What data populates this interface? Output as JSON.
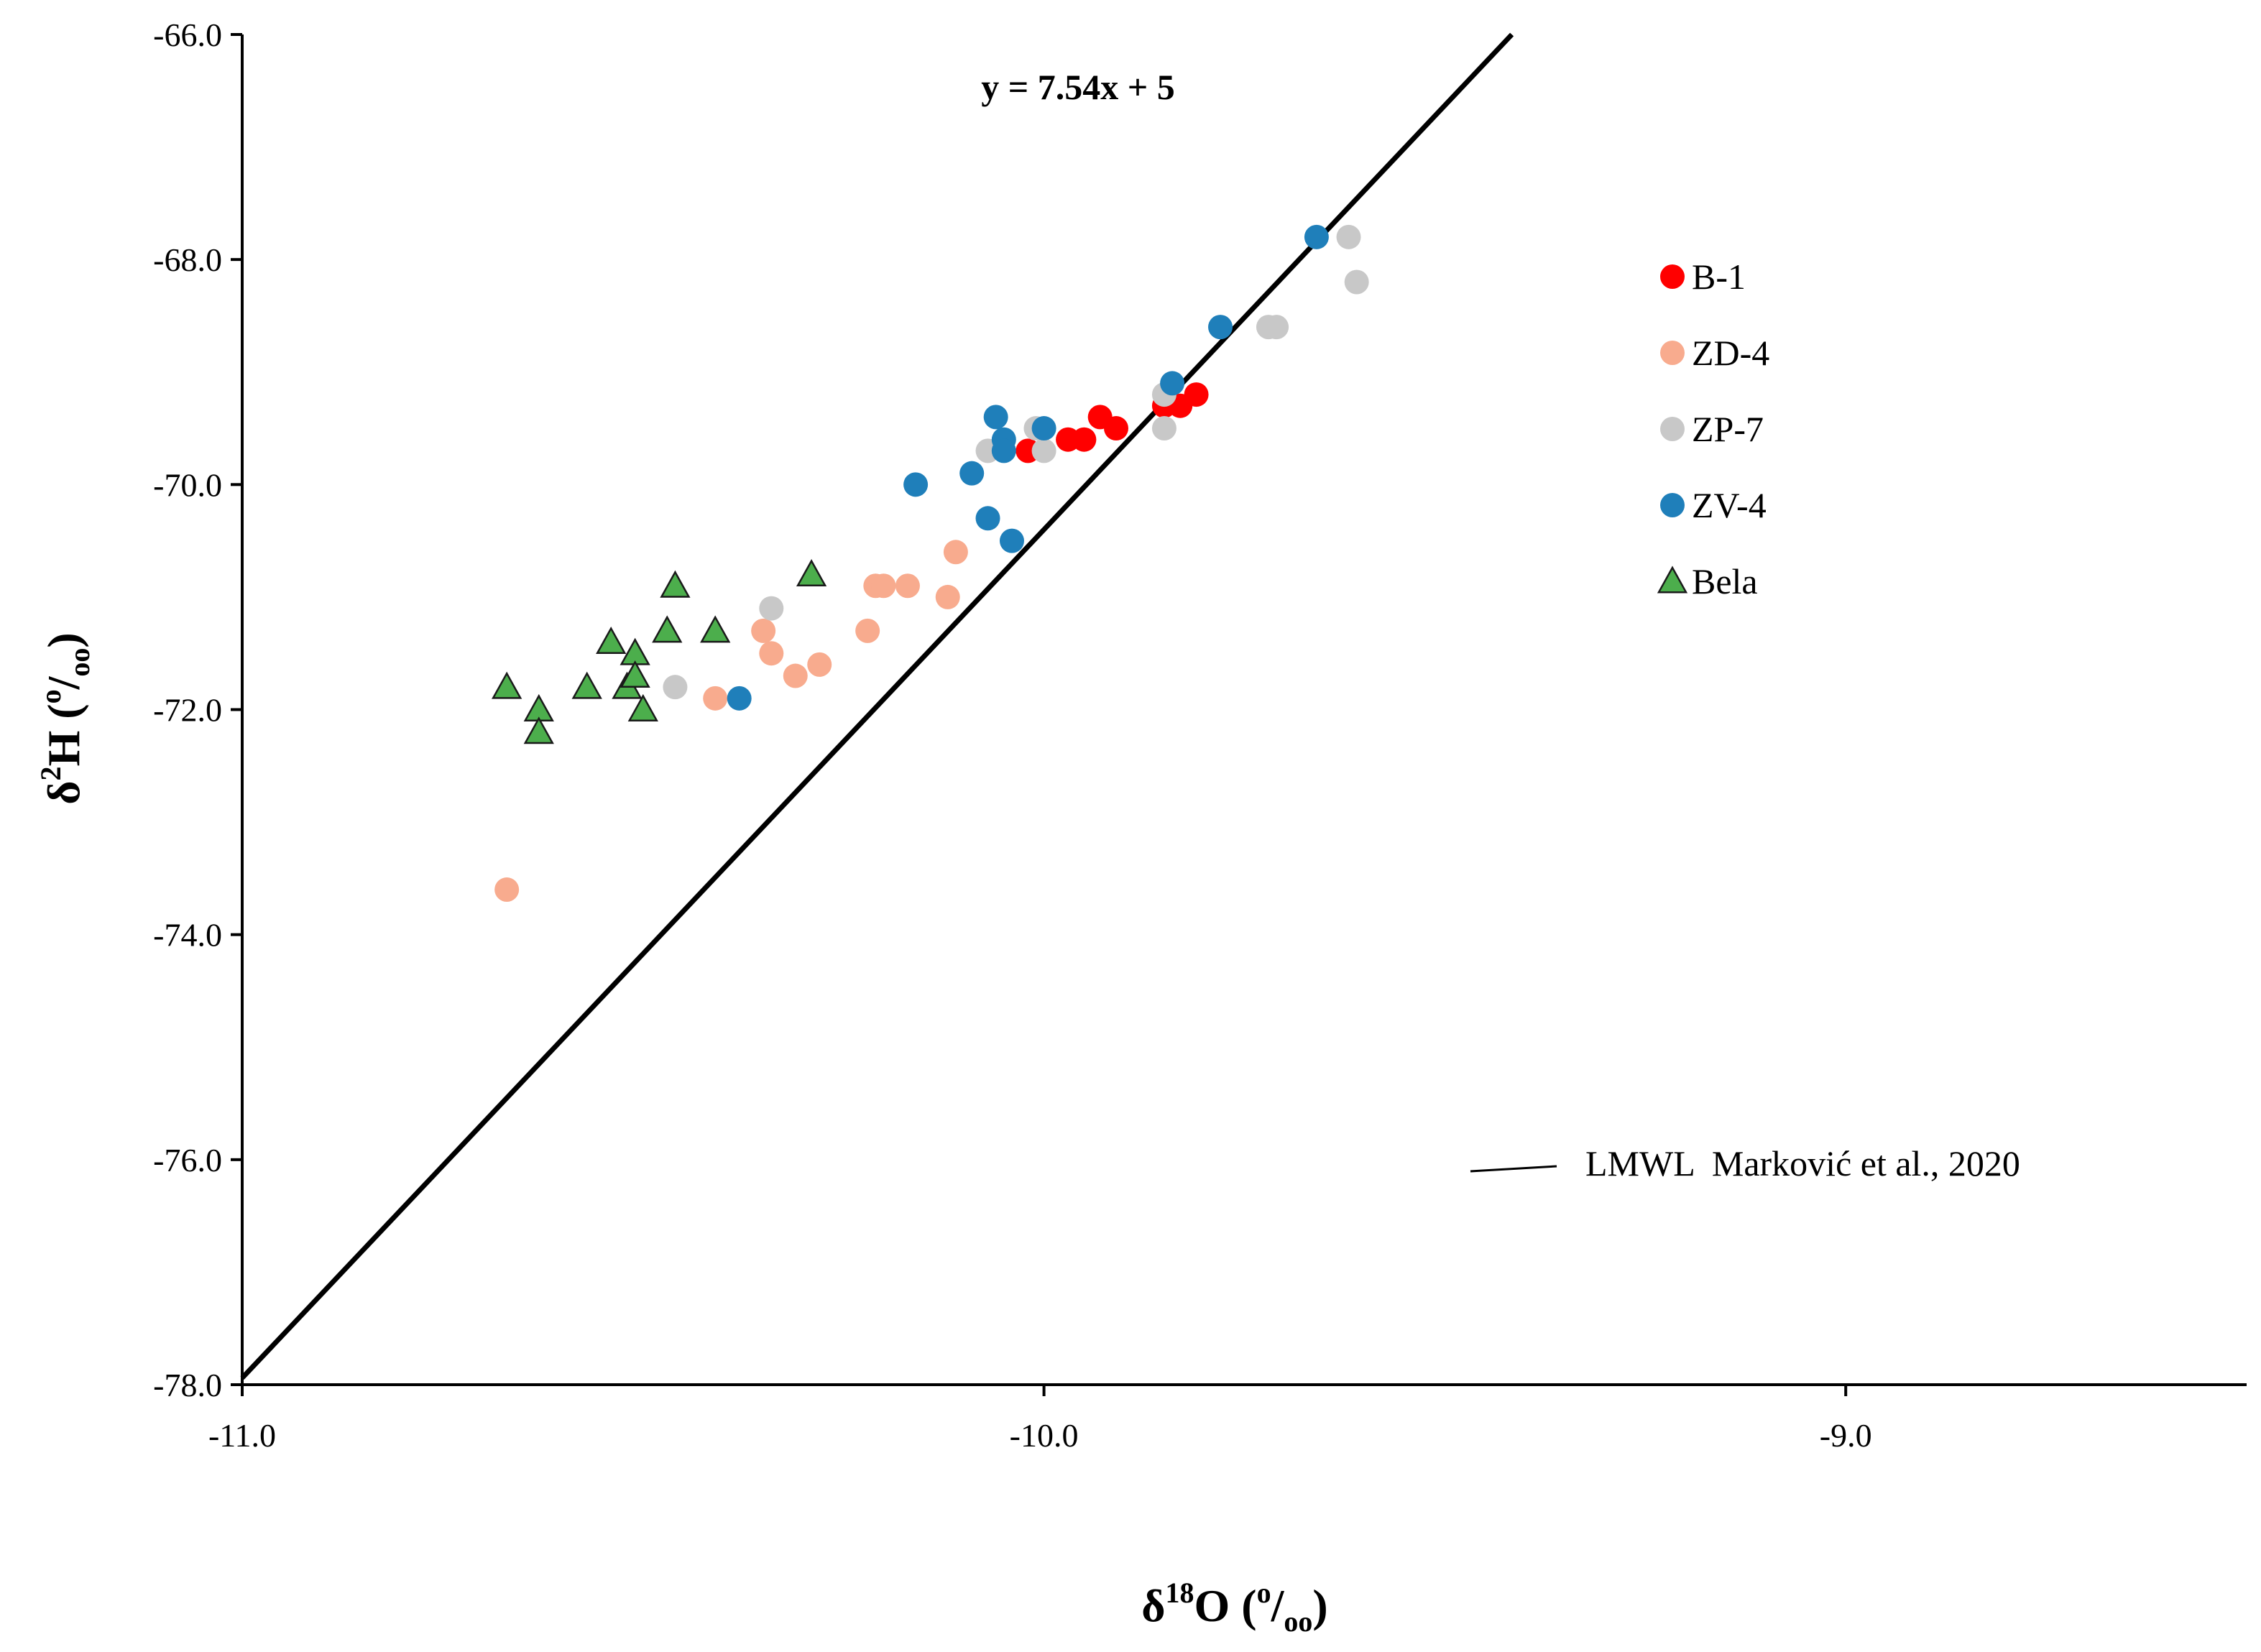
{
  "chart_data": {
    "type": "scatter",
    "title": "",
    "xlabel": "δ18O (o/oo)",
    "ylabel": "δ2H (o/oo)",
    "xlabel_parts": {
      "delta": "δ",
      "iso_mass": "18",
      "element": "O",
      "open": " (",
      "permil_top": "o",
      "slash": "/",
      "permil_bottom": "oo",
      "close": ")"
    },
    "ylabel_parts": {
      "delta": "δ",
      "iso_mass": "2",
      "element": "H",
      "open": " (",
      "permil_top": "o",
      "slash": "/",
      "permil_bottom": "oo",
      "close": ")"
    },
    "xlim": [
      -11.0,
      -8.5
    ],
    "ylim": [
      -78.0,
      -66.0
    ],
    "x_ticks": [
      -11.0,
      -10.0,
      -9.0
    ],
    "x_tick_labels": [
      "-11.0",
      "-10.0",
      "-9.0"
    ],
    "y_ticks": [
      -78.0,
      -76.0,
      -74.0,
      -72.0,
      -70.0,
      -68.0,
      -66.0
    ],
    "y_tick_labels": [
      "-78.0",
      "-76.0",
      "-74.0",
      "-72.0",
      "-70.0",
      "-68.0",
      "-66.0"
    ],
    "grid": false,
    "legend_position": "right",
    "regression": {
      "name": "LMWL  Marković et al., 2020",
      "equation_label": "y = 7.54x + 5",
      "slope": 7.54,
      "intercept": 5,
      "color": "#000000"
    },
    "series": [
      {
        "name": "B-1",
        "marker": "circle",
        "color": "#ff0000",
        "points": [
          [
            -10.02,
            -69.7
          ],
          [
            -9.97,
            -69.6
          ],
          [
            -9.95,
            -69.6
          ],
          [
            -9.93,
            -69.4
          ],
          [
            -9.91,
            -69.5
          ],
          [
            -9.85,
            -69.3
          ],
          [
            -9.83,
            -69.3
          ],
          [
            -9.81,
            -69.2
          ]
        ]
      },
      {
        "name": "ZD-4",
        "marker": "circle",
        "color": "#f8ab8e",
        "points": [
          [
            -10.35,
            -71.3
          ],
          [
            -10.34,
            -71.5
          ],
          [
            -10.41,
            -71.9
          ],
          [
            -10.31,
            -71.7
          ],
          [
            -10.28,
            -71.6
          ],
          [
            -10.22,
            -71.3
          ],
          [
            -10.21,
            -70.9
          ],
          [
            -10.2,
            -70.9
          ],
          [
            -10.17,
            -70.9
          ],
          [
            -10.12,
            -71.0
          ],
          [
            -10.11,
            -70.6
          ],
          [
            -10.67,
            -73.6
          ]
        ]
      },
      {
        "name": "ZP-7",
        "marker": "circle",
        "color": "#c8c8c8",
        "points": [
          [
            -10.34,
            -71.1
          ],
          [
            -10.46,
            -71.8
          ],
          [
            -10.07,
            -69.7
          ],
          [
            -10.01,
            -69.5
          ],
          [
            -10.0,
            -69.7
          ],
          [
            -9.85,
            -69.5
          ],
          [
            -9.85,
            -69.2
          ],
          [
            -9.72,
            -68.6
          ],
          [
            -9.71,
            -68.6
          ],
          [
            -9.62,
            -67.8
          ],
          [
            -9.61,
            -68.2
          ]
        ]
      },
      {
        "name": "ZV-4",
        "marker": "circle",
        "color": "#1f7fba",
        "points": [
          [
            -10.38,
            -71.9
          ],
          [
            -10.16,
            -70.0
          ],
          [
            -10.09,
            -69.9
          ],
          [
            -10.07,
            -70.3
          ],
          [
            -10.06,
            -69.4
          ],
          [
            -10.05,
            -69.6
          ],
          [
            -10.05,
            -69.7
          ],
          [
            -10.04,
            -70.5
          ],
          [
            -10.0,
            -69.5
          ],
          [
            -9.84,
            -69.1
          ],
          [
            -9.78,
            -68.6
          ],
          [
            -9.66,
            -67.8
          ]
        ]
      },
      {
        "name": "Bela",
        "marker": "triangle",
        "color": "#4cae4c",
        "points": [
          [
            -10.67,
            -71.8
          ],
          [
            -10.63,
            -72.0
          ],
          [
            -10.63,
            -72.2
          ],
          [
            -10.57,
            -71.8
          ],
          [
            -10.54,
            -71.4
          ],
          [
            -10.52,
            -71.8
          ],
          [
            -10.51,
            -71.5
          ],
          [
            -10.51,
            -71.7
          ],
          [
            -10.5,
            -72.0
          ],
          [
            -10.47,
            -71.3
          ],
          [
            -10.46,
            -70.9
          ],
          [
            -10.41,
            -71.3
          ],
          [
            -10.29,
            -70.8
          ]
        ]
      }
    ]
  }
}
